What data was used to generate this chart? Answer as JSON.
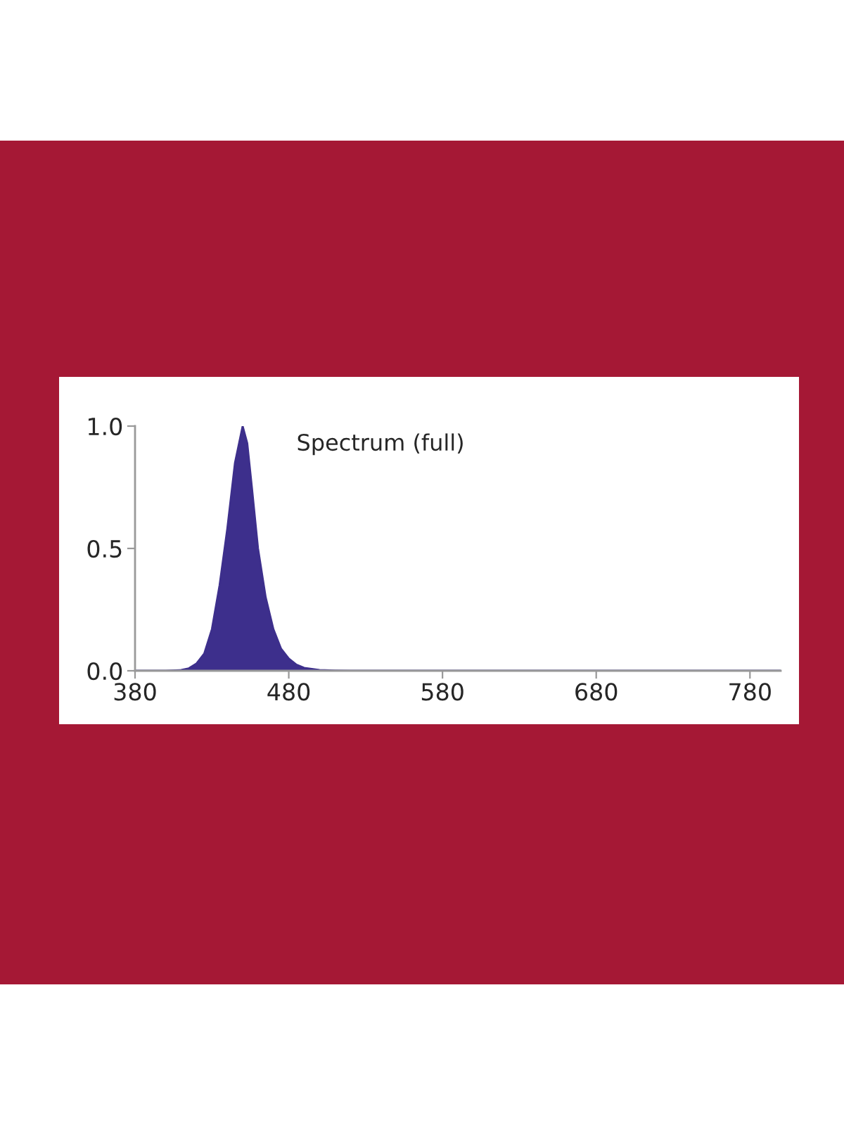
{
  "chart_data": {
    "type": "area",
    "title": "Spectrum (full)",
    "x": [
      380,
      400,
      410,
      415,
      420,
      425,
      430,
      435,
      440,
      445,
      450,
      453,
      456,
      460,
      465,
      470,
      475,
      480,
      485,
      490,
      500,
      510,
      520,
      800
    ],
    "series": [
      {
        "color": "#3d2f8c",
        "values": [
          0,
          0,
          0.003,
          0.01,
          0.03,
          0.07,
          0.17,
          0.35,
          0.58,
          0.85,
          1.0,
          0.93,
          0.75,
          0.5,
          0.3,
          0.17,
          0.09,
          0.05,
          0.025,
          0.012,
          0.003,
          0.001,
          0,
          0
        ]
      }
    ],
    "xlim": [
      380,
      800
    ],
    "xticks": [
      380,
      480,
      580,
      680,
      780
    ],
    "ylim": [
      0,
      1.0
    ],
    "yticks": [
      {
        "value": 0,
        "label": "0.0"
      },
      {
        "value": 0.5,
        "label": "0.5"
      },
      {
        "value": 1.0,
        "label": "1.0"
      }
    ],
    "grid": false,
    "legend": false
  }
}
